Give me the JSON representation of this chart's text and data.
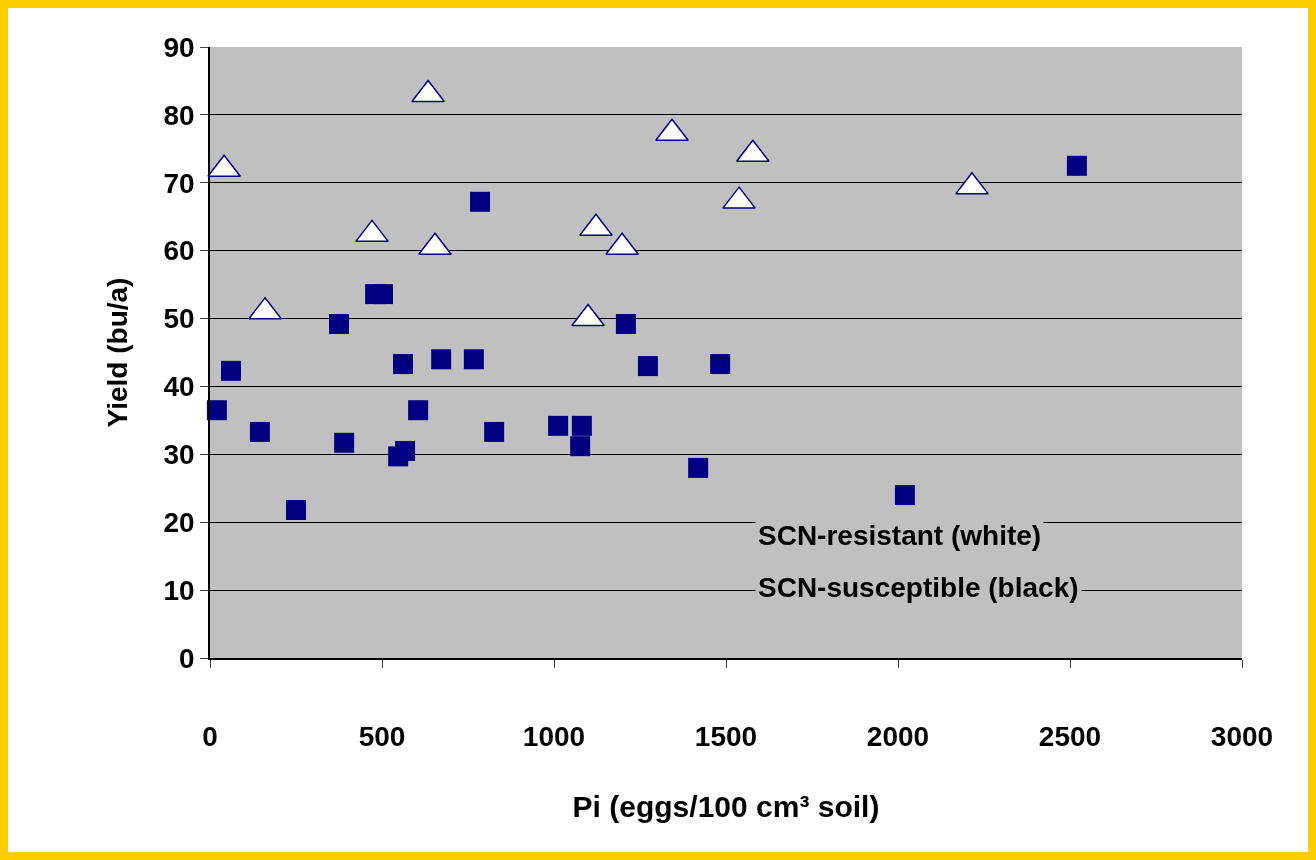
{
  "chart_data": {
    "type": "scatter",
    "xlabel": "Pi (eggs/100 cm³ soil)",
    "ylabel": "Yield (bu/a)",
    "annotations": [
      "SCN-resistant (white)",
      "SCN-susceptible (black)"
    ],
    "xlim": [
      0,
      3000
    ],
    "xticks": [
      0,
      500,
      1000,
      1500,
      2000,
      2500,
      3000
    ],
    "ylim": [
      0,
      90
    ],
    "yticks": [
      0,
      10,
      20,
      30,
      40,
      50,
      60,
      70,
      80,
      90
    ],
    "grid": "y",
    "series": [
      {
        "color": "#000080",
        "marker": "triangle",
        "x": [
          41,
          160,
          471,
          634,
          654,
          1122,
          1099,
          1198,
          1343,
          1538,
          1578,
          2215
        ],
        "values": [
          72,
          51,
          62.4,
          83,
          60.5,
          63.3,
          50,
          60.5,
          77.3,
          67.3,
          74.2,
          69.4
        ]
      },
      {
        "color": "#000080",
        "marker": "square",
        "x": [
          20,
          61,
          145,
          250,
          375,
          390,
          480,
          503,
          547,
          567,
          561,
          672,
          605,
          767,
          785,
          826,
          1012,
          1081,
          1076,
          1209,
          1273,
          1419,
          1483,
          2020,
          2520
        ],
        "values": [
          36.5,
          42.3,
          33.3,
          21.8,
          49.2,
          31.7,
          53.6,
          53.6,
          29.7,
          30.5,
          43.3,
          44,
          36.5,
          44,
          67.2,
          33.3,
          34.2,
          34.2,
          31.2,
          49.2,
          43,
          28,
          43.3,
          24,
          72.5
        ]
      }
    ]
  }
}
